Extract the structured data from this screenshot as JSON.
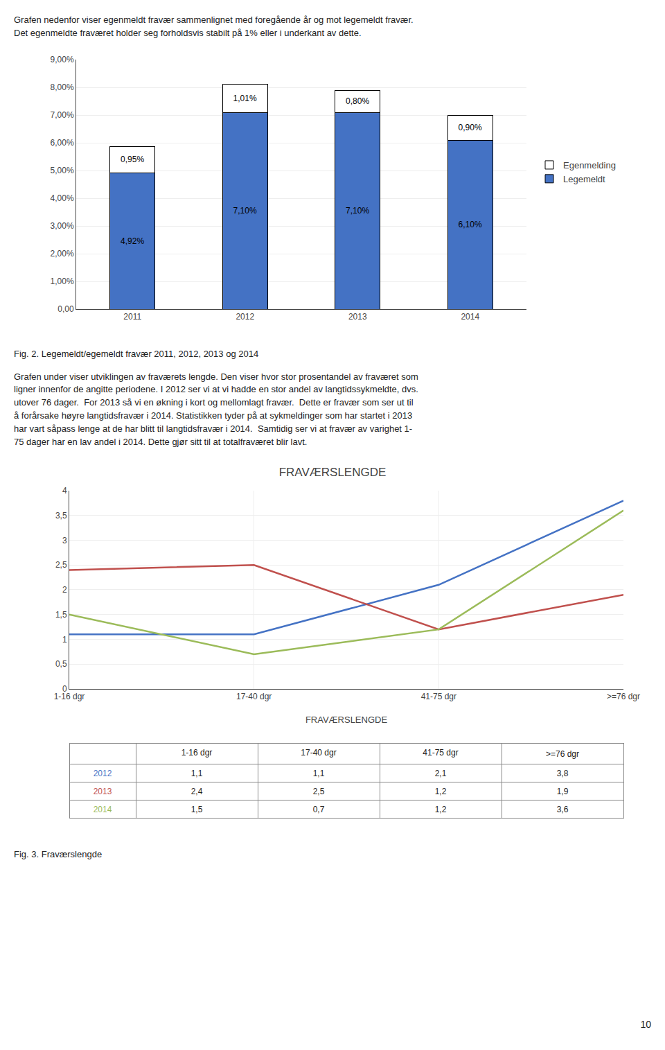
{
  "chart_data": [
    {
      "type": "bar",
      "stacked": true,
      "data_labels": true,
      "grid": true,
      "legend": "right",
      "annotations": [
        "Grafen nedenfor viser egenmeldt fravær sammenlignet med foregående år og mot legemeldt fravær.",
        "Det egenmeldte fraværet holder seg forholdsvis stabilt på 1% eller i underkant av dette.",
        "Fig. 2. Legemeldt/egemeldt fravær 2011, 2012, 2013 og 2014",
        "Grafen under viser utviklingen av fraværets lengde. Den viser hvor stor prosentandel av fraværet som\nligner innenfor de angitte periodene. I 2012 ser vi at vi hadde en stor andel av langtidssykmeldte, dvs.\nutover 76 dager.  For 2013 så vi en økning i kort og mellomlagt fravær.  Dette er fravær som ser ut til\nå forårsake høyre langtidsfravær i 2014. Statistikken tyder på at sykmeldinger som har startet i 2013\nhar vart såpass lenge at de har blitt til langtidsfravær i 2014.  Samtidig ser vi at fravær av varighet 1-\n75 dager har en lav andel i 2014. Dette gjør sitt til at totalfraværet blir lavt."
      ],
      "categories": [
        "2011",
        "2012",
        "2013",
        "2014"
      ],
      "series": [
        {
          "name": "Legemeldt",
          "color": "#4472C4",
          "values": [
            4.92,
            7.1,
            7.1,
            6.1
          ],
          "value_labels": [
            "4,92%",
            "7,10%",
            "7,10%",
            "6,10%"
          ]
        },
        {
          "name": "Egenmelding",
          "color": "#FFFFFF",
          "values": [
            0.95,
            1.01,
            0.8,
            0.9
          ],
          "value_labels": [
            "0,95%",
            "1,01%",
            "0,80%",
            "0,90%"
          ]
        }
      ],
      "ylim": [
        0,
        9
      ],
      "yticks": [
        {
          "value": 0,
          "label": "0,00"
        },
        {
          "value": 1,
          "label": "1,00%"
        },
        {
          "value": 2,
          "label": "2,00%"
        },
        {
          "value": 3,
          "label": "3,00%"
        },
        {
          "value": 4,
          "label": "4,00%"
        },
        {
          "value": 5,
          "label": "5,00%"
        },
        {
          "value": 6,
          "label": "6,00%"
        },
        {
          "value": 7,
          "label": "7,00%"
        },
        {
          "value": 8,
          "label": "8,00%"
        },
        {
          "value": 9,
          "label": "9,00%"
        }
      ]
    },
    {
      "type": "line",
      "title": "FRAVÆRSLENGDE",
      "xlabel": "FRAVÆRSLENGDE",
      "grid": true,
      "annotations": [
        "Fig. 3. Fraværslengde",
        "10"
      ],
      "categories": [
        "1-16 dgr",
        "17-40 dgr",
        "41-75 dgr",
        ">=76 dgr"
      ],
      "series": [
        {
          "name": "2012",
          "color": "#4472C4",
          "values": [
            1.1,
            1.1,
            2.1,
            3.8
          ],
          "value_labels": [
            "1,1",
            "1,1",
            "2,1",
            "3,8"
          ]
        },
        {
          "name": "2013",
          "color": "#C0504D",
          "values": [
            2.4,
            2.5,
            1.2,
            1.9
          ],
          "value_labels": [
            "2,4",
            "2,5",
            "1,2",
            "1,9"
          ]
        },
        {
          "name": "2014",
          "color": "#9BBB59",
          "values": [
            1.5,
            0.7,
            1.2,
            3.6
          ],
          "value_labels": [
            "1,5",
            "0,7",
            "1,2",
            "3,6"
          ]
        }
      ],
      "ylim": [
        0,
        4
      ],
      "yticks": [
        0,
        {
          "value": 0.5,
          "label": "0,5"
        },
        1,
        {
          "value": 1.5,
          "label": "1,5"
        },
        2,
        {
          "value": 2.5,
          "label": "2,5"
        },
        3,
        {
          "value": 3.5,
          "label": "3,5"
        },
        4
      ]
    }
  ]
}
